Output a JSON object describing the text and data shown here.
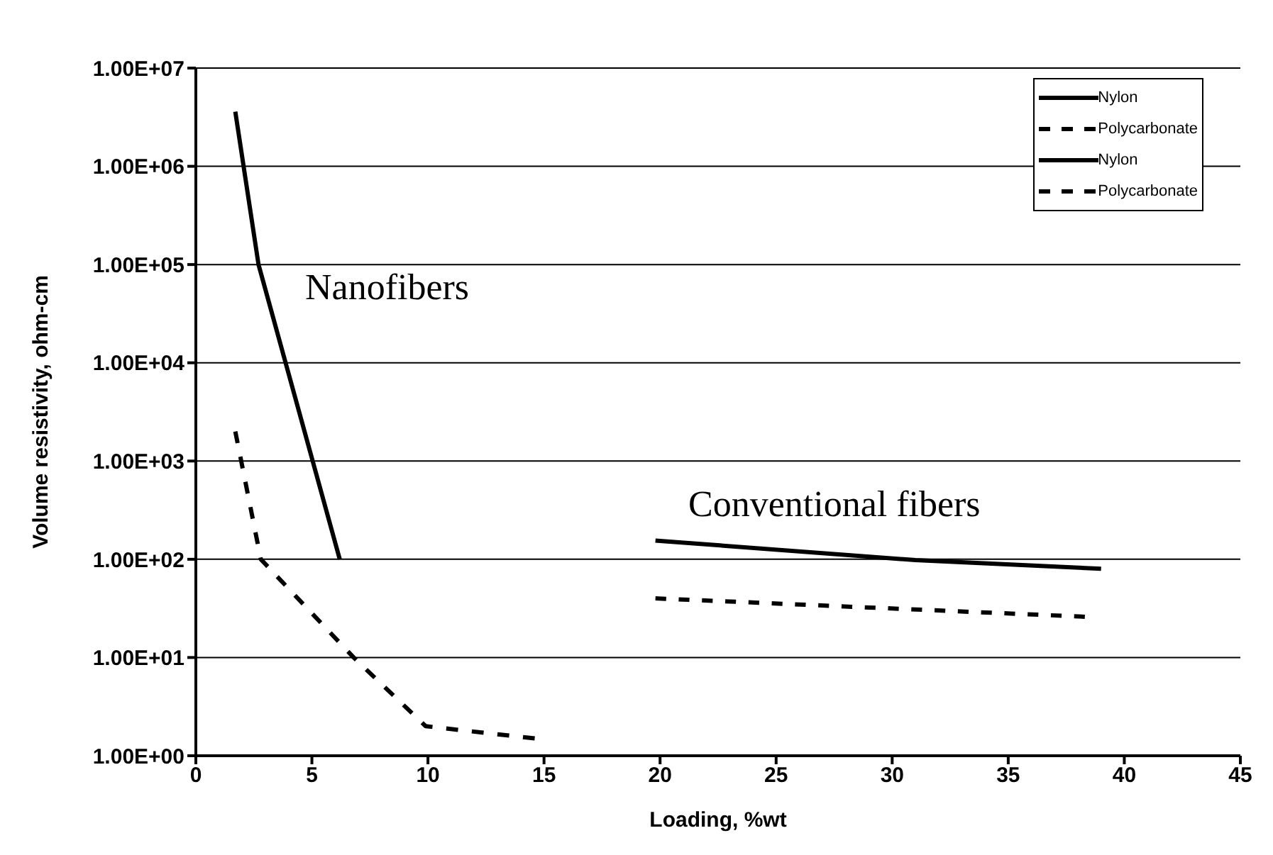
{
  "chart_data": {
    "type": "line",
    "xlabel": "Loading, %wt",
    "ylabel": "Volume resistivity, ohm-cm",
    "log": "y",
    "grid": "y",
    "legend": "top right",
    "marker": "none",
    "xlim": [
      0,
      45
    ],
    "xticks": [
      0,
      5,
      10,
      15,
      20,
      25,
      30,
      35,
      40,
      45
    ],
    "ylim": [
      1,
      10000000
    ],
    "yticks": [
      {
        "value": 1,
        "label": "1.00E+00"
      },
      {
        "value": 10,
        "label": "1.00E+01"
      },
      {
        "value": 100,
        "label": "1.00E+02"
      },
      {
        "value": 1000,
        "label": "1.00E+03"
      },
      {
        "value": 10000,
        "label": "1.00E+04"
      },
      {
        "value": 100000,
        "label": "1.00E+05"
      },
      {
        "value": 1000000,
        "label": "1.00E+06"
      },
      {
        "value": 10000000,
        "label": "1.00E+07"
      }
    ],
    "annotations": [
      "Nanofibers",
      "Conventional fibers"
    ],
    "series": [
      {
        "name": "Nylon",
        "color": "#000000",
        "line_style": "solid",
        "x": [
          1.7,
          2.7,
          6.2
        ],
        "values": [
          3600000,
          100000,
          100
        ]
      },
      {
        "name": "Polycarbonate",
        "color": "#000000",
        "line_style": "dashed",
        "x": [
          1.7,
          2.8,
          6.8,
          9.9,
          14.6
        ],
        "values": [
          2000,
          100,
          10,
          2,
          1.5
        ]
      },
      {
        "name": "Nylon",
        "color": "#000000",
        "line_style": "solid",
        "x": [
          19.8,
          31,
          39
        ],
        "values": [
          155,
          98,
          80
        ]
      },
      {
        "name": "Polycarbonate",
        "color": "#000000",
        "line_style": "dashed",
        "x": [
          19.8,
          38.3
        ],
        "values": [
          40,
          26
        ]
      }
    ]
  }
}
